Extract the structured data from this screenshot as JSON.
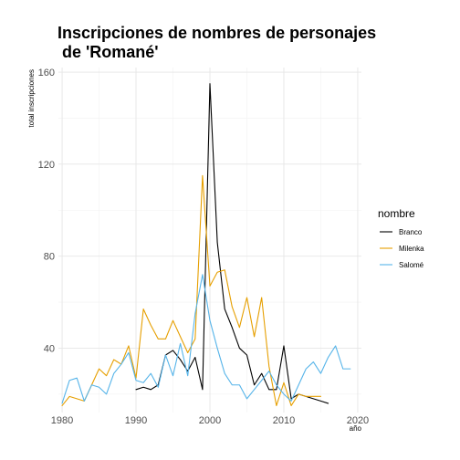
{
  "chart_data": {
    "type": "line",
    "title_line1": "Inscripciones de nombres de personajes",
    "title_line2": " de 'Romané'",
    "xlabel": "año",
    "ylabel": "total inscripciones",
    "xlim": [
      1979.5,
      2020.5
    ],
    "ylim": [
      12,
      162
    ],
    "x_ticks": [
      1980,
      1990,
      2000,
      2010,
      2020
    ],
    "x_minor": [
      1985,
      1995,
      2005,
      2015
    ],
    "y_ticks": [
      40,
      80,
      120,
      160
    ],
    "y_minor": [
      20,
      60,
      100,
      140
    ],
    "grid": true,
    "legend_title": "nombre",
    "legend_position": "right",
    "series": [
      {
        "name": "Branco",
        "color": "#000000",
        "x": [
          1990,
          1991,
          1992,
          1993,
          1994,
          1995,
          1996,
          1997,
          1998,
          1999,
          2000,
          2001,
          2002,
          2003,
          2004,
          2005,
          2006,
          2007,
          2008,
          2009,
          2010,
          2011,
          2012,
          2013,
          2014,
          2015,
          2016
        ],
        "y": [
          22,
          23,
          22,
          24,
          37,
          39,
          35,
          30,
          36,
          22,
          155,
          86,
          57,
          49,
          40,
          37,
          24,
          29,
          22,
          22,
          41,
          18,
          20,
          19,
          18,
          17,
          16
        ]
      },
      {
        "name": "Milenka",
        "color": "#E69F00",
        "x": [
          1980,
          1981,
          1982,
          1983,
          1984,
          1985,
          1986,
          1987,
          1988,
          1989,
          1990,
          1991,
          1992,
          1993,
          1994,
          1995,
          1996,
          1997,
          1998,
          1999,
          2000,
          2001,
          2002,
          2003,
          2004,
          2005,
          2006,
          2007,
          2008,
          2009,
          2010,
          2011,
          2012,
          2013,
          2014,
          2015
        ],
        "y": [
          15,
          19,
          18,
          17,
          24,
          31,
          28,
          35,
          33,
          41,
          27,
          57,
          50,
          44,
          44,
          52,
          45,
          38,
          44,
          115,
          67,
          73,
          74,
          58,
          49,
          62,
          45,
          62,
          32,
          15,
          25,
          15,
          20,
          19,
          19,
          19
        ]
      },
      {
        "name": "Salomé",
        "color": "#56B4E9",
        "x": [
          1980,
          1981,
          1982,
          1983,
          1984,
          1985,
          1986,
          1987,
          1988,
          1989,
          1990,
          1991,
          1992,
          1993,
          1994,
          1995,
          1996,
          1997,
          1998,
          1999,
          2000,
          2001,
          2002,
          2003,
          2004,
          2005,
          2006,
          2007,
          2008,
          2009,
          2010,
          2011,
          2012,
          2013,
          2014,
          2015,
          2016,
          2017,
          2018,
          2019
        ],
        "y": [
          16,
          26,
          27,
          17,
          24,
          23,
          20,
          29,
          33,
          38,
          26,
          25,
          29,
          23,
          37,
          28,
          42,
          28,
          55,
          72,
          52,
          40,
          29,
          24,
          24,
          18,
          22,
          26,
          30,
          24,
          20,
          17,
          24,
          31,
          34,
          29,
          36,
          41,
          31,
          31
        ]
      }
    ]
  }
}
